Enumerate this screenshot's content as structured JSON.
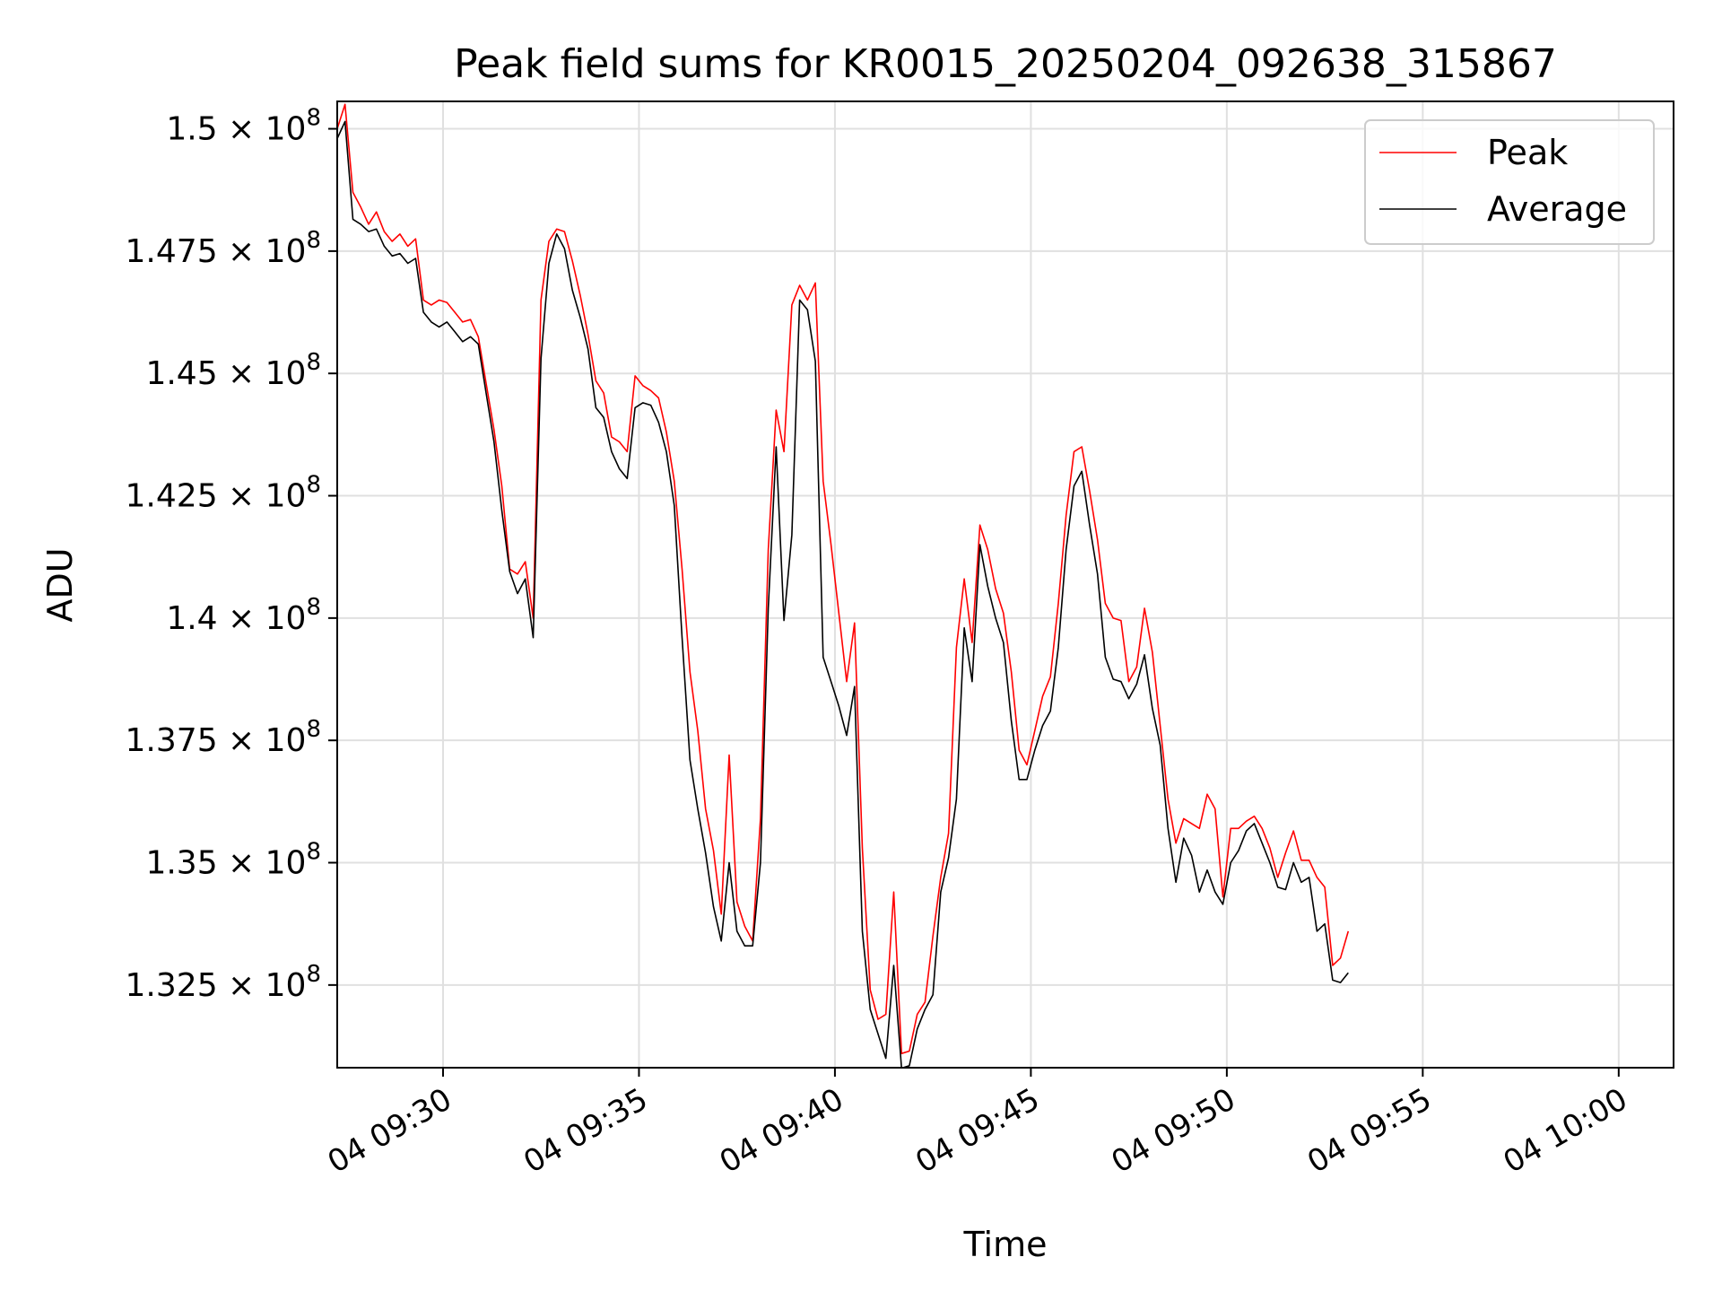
{
  "chart_data": {
    "type": "line",
    "title": "Peak field sums for KR0015_20250204_092638_315867",
    "xlabel": "Time",
    "ylabel": "ADU",
    "x_unit": "minutes",
    "xlim": [
      "09:27:18",
      "10:01:24"
    ],
    "ylim": [
      130810000,
      150560000
    ],
    "grid": true,
    "legend_position": "top-right",
    "x_ticks": [
      {
        "value": "09:30:00",
        "label": "04 09:30"
      },
      {
        "value": "09:35:00",
        "label": "04 09:35"
      },
      {
        "value": "09:40:00",
        "label": "04 09:40"
      },
      {
        "value": "09:45:00",
        "label": "04 09:45"
      },
      {
        "value": "09:50:00",
        "label": "04 09:50"
      },
      {
        "value": "09:55:00",
        "label": "04 09:55"
      },
      {
        "value": "10:00:00",
        "label": "04 10:00"
      }
    ],
    "y_ticks": [
      {
        "value": 150000000,
        "mantissa": "1.5"
      },
      {
        "value": 147500000,
        "mantissa": "1.475"
      },
      {
        "value": 145000000,
        "mantissa": "1.45"
      },
      {
        "value": 142500000,
        "mantissa": "1.425"
      },
      {
        "value": 140000000,
        "mantissa": "1.4"
      },
      {
        "value": 137500000,
        "mantissa": "1.375"
      },
      {
        "value": 135000000,
        "mantissa": "1.35"
      },
      {
        "value": 132500000,
        "mantissa": "1.325"
      }
    ],
    "y_tick_suffix": " × 10",
    "y_tick_exponent": "8",
    "series": [
      {
        "name": "Peak",
        "color": "#ff0000",
        "points": [
          [
            "09:27:18",
            150.0
          ],
          [
            "09:27:30",
            150.5
          ],
          [
            "09:27:42",
            148.7
          ],
          [
            "09:27:54",
            148.4
          ],
          [
            "09:28:06",
            148.05
          ],
          [
            "09:28:18",
            148.3
          ],
          [
            "09:28:30",
            147.9
          ],
          [
            "09:28:42",
            147.7
          ],
          [
            "09:28:54",
            147.85
          ],
          [
            "09:29:06",
            147.6
          ],
          [
            "09:29:18",
            147.75
          ],
          [
            "09:29:30",
            146.5
          ],
          [
            "09:29:42",
            146.4
          ],
          [
            "09:29:54",
            146.5
          ],
          [
            "09:30:06",
            146.45
          ],
          [
            "09:30:18",
            146.25
          ],
          [
            "09:30:30",
            146.05
          ],
          [
            "09:30:42",
            146.1
          ],
          [
            "09:30:54",
            145.75
          ],
          [
            "09:31:06",
            144.8
          ],
          [
            "09:31:18",
            143.85
          ],
          [
            "09:31:30",
            142.7
          ],
          [
            "09:31:42",
            141.0
          ],
          [
            "09:31:54",
            140.9
          ],
          [
            "09:32:06",
            141.15
          ],
          [
            "09:32:18",
            140.0
          ],
          [
            "09:32:30",
            146.5
          ],
          [
            "09:32:42",
            147.7
          ],
          [
            "09:32:54",
            147.95
          ],
          [
            "09:33:06",
            147.9
          ],
          [
            "09:33:18",
            147.3
          ],
          [
            "09:33:30",
            146.6
          ],
          [
            "09:33:42",
            145.8
          ],
          [
            "09:33:54",
            144.85
          ],
          [
            "09:34:06",
            144.6
          ],
          [
            "09:34:18",
            143.7
          ],
          [
            "09:34:30",
            143.6
          ],
          [
            "09:34:42",
            143.4
          ],
          [
            "09:34:54",
            144.95
          ],
          [
            "09:35:06",
            144.75
          ],
          [
            "09:35:18",
            144.65
          ],
          [
            "09:35:30",
            144.5
          ],
          [
            "09:35:42",
            143.8
          ],
          [
            "09:35:54",
            142.8
          ],
          [
            "09:36:06",
            141.0
          ],
          [
            "09:36:18",
            138.9
          ],
          [
            "09:36:30",
            137.7
          ],
          [
            "09:36:42",
            136.1
          ],
          [
            "09:36:54",
            135.25
          ],
          [
            "09:37:06",
            133.95
          ],
          [
            "09:37:18",
            137.2
          ],
          [
            "09:37:30",
            134.2
          ],
          [
            "09:37:42",
            133.7
          ],
          [
            "09:37:54",
            133.4
          ],
          [
            "09:38:06",
            135.9
          ],
          [
            "09:38:18",
            141.4
          ],
          [
            "09:38:30",
            144.25
          ],
          [
            "09:38:42",
            143.4
          ],
          [
            "09:38:54",
            146.4
          ],
          [
            "09:39:06",
            146.8
          ],
          [
            "09:39:18",
            146.5
          ],
          [
            "09:39:30",
            146.85
          ],
          [
            "09:39:42",
            142.8
          ],
          [
            "09:39:54",
            141.5
          ],
          [
            "09:40:06",
            140.1
          ],
          [
            "09:40:18",
            138.7
          ],
          [
            "09:40:30",
            139.9
          ],
          [
            "09:40:42",
            135.3
          ],
          [
            "09:40:54",
            132.4
          ],
          [
            "09:41:06",
            131.8
          ],
          [
            "09:41:18",
            131.9
          ],
          [
            "09:41:30",
            134.4
          ],
          [
            "09:41:42",
            131.1
          ],
          [
            "09:41:54",
            131.15
          ],
          [
            "09:42:06",
            131.9
          ],
          [
            "09:42:18",
            132.15
          ],
          [
            "09:42:30",
            133.5
          ],
          [
            "09:42:42",
            134.7
          ],
          [
            "09:42:54",
            135.6
          ],
          [
            "09:43:06",
            139.4
          ],
          [
            "09:43:18",
            140.8
          ],
          [
            "09:43:30",
            139.5
          ],
          [
            "09:43:42",
            141.9
          ],
          [
            "09:43:54",
            141.4
          ],
          [
            "09:44:06",
            140.6
          ],
          [
            "09:44:18",
            140.1
          ],
          [
            "09:44:30",
            138.9
          ],
          [
            "09:44:42",
            137.3
          ],
          [
            "09:44:54",
            137.0
          ],
          [
            "09:45:06",
            137.7
          ],
          [
            "09:45:18",
            138.4
          ],
          [
            "09:45:30",
            138.8
          ],
          [
            "09:45:42",
            140.3
          ],
          [
            "09:45:54",
            142.1
          ],
          [
            "09:46:06",
            143.4
          ],
          [
            "09:46:18",
            143.5
          ],
          [
            "09:46:30",
            142.6
          ],
          [
            "09:46:42",
            141.6
          ],
          [
            "09:46:54",
            140.3
          ],
          [
            "09:47:06",
            140.0
          ],
          [
            "09:47:18",
            139.95
          ],
          [
            "09:47:30",
            138.7
          ],
          [
            "09:47:42",
            139.0
          ],
          [
            "09:47:54",
            140.2
          ],
          [
            "09:48:06",
            139.3
          ],
          [
            "09:48:18",
            137.8
          ],
          [
            "09:48:30",
            136.3
          ],
          [
            "09:48:42",
            135.4
          ],
          [
            "09:48:54",
            135.9
          ],
          [
            "09:49:06",
            135.8
          ],
          [
            "09:49:18",
            135.7
          ],
          [
            "09:49:30",
            136.4
          ],
          [
            "09:49:42",
            136.1
          ],
          [
            "09:49:54",
            134.3
          ],
          [
            "09:50:06",
            135.7
          ],
          [
            "09:50:18",
            135.7
          ],
          [
            "09:50:30",
            135.85
          ],
          [
            "09:50:42",
            135.95
          ],
          [
            "09:50:54",
            135.7
          ],
          [
            "09:51:06",
            135.3
          ],
          [
            "09:51:18",
            134.7
          ],
          [
            "09:51:30",
            135.2
          ],
          [
            "09:51:42",
            135.65
          ],
          [
            "09:51:54",
            135.05
          ],
          [
            "09:52:06",
            135.05
          ],
          [
            "09:52:18",
            134.7
          ],
          [
            "09:52:30",
            134.5
          ],
          [
            "09:52:42",
            132.9
          ],
          [
            "09:52:54",
            133.05
          ],
          [
            "09:53:06",
            133.6
          ]
        ]
      },
      {
        "name": "Average",
        "color": "#000000",
        "points": [
          [
            "09:27:18",
            149.8
          ],
          [
            "09:27:30",
            150.15
          ],
          [
            "09:27:42",
            148.15
          ],
          [
            "09:27:54",
            148.05
          ],
          [
            "09:28:06",
            147.9
          ],
          [
            "09:28:18",
            147.95
          ],
          [
            "09:28:30",
            147.6
          ],
          [
            "09:28:42",
            147.4
          ],
          [
            "09:28:54",
            147.45
          ],
          [
            "09:29:06",
            147.25
          ],
          [
            "09:29:18",
            147.35
          ],
          [
            "09:29:30",
            146.25
          ],
          [
            "09:29:42",
            146.05
          ],
          [
            "09:29:54",
            145.95
          ],
          [
            "09:30:06",
            146.05
          ],
          [
            "09:30:18",
            145.85
          ],
          [
            "09:30:30",
            145.65
          ],
          [
            "09:30:42",
            145.75
          ],
          [
            "09:30:54",
            145.6
          ],
          [
            "09:31:06",
            144.6
          ],
          [
            "09:31:18",
            143.6
          ],
          [
            "09:31:30",
            142.2
          ],
          [
            "09:31:42",
            140.95
          ],
          [
            "09:31:54",
            140.5
          ],
          [
            "09:32:06",
            140.8
          ],
          [
            "09:32:18",
            139.6
          ],
          [
            "09:32:30",
            145.3
          ],
          [
            "09:32:42",
            147.25
          ],
          [
            "09:32:54",
            147.85
          ],
          [
            "09:33:06",
            147.55
          ],
          [
            "09:33:18",
            146.7
          ],
          [
            "09:33:30",
            146.15
          ],
          [
            "09:33:42",
            145.5
          ],
          [
            "09:33:54",
            144.3
          ],
          [
            "09:34:06",
            144.1
          ],
          [
            "09:34:18",
            143.4
          ],
          [
            "09:34:30",
            143.05
          ],
          [
            "09:34:42",
            142.85
          ],
          [
            "09:34:54",
            144.3
          ],
          [
            "09:35:06",
            144.4
          ],
          [
            "09:35:18",
            144.35
          ],
          [
            "09:35:30",
            144.0
          ],
          [
            "09:35:42",
            143.4
          ],
          [
            "09:35:54",
            142.3
          ],
          [
            "09:36:06",
            139.6
          ],
          [
            "09:36:18",
            137.1
          ],
          [
            "09:36:30",
            136.1
          ],
          [
            "09:36:42",
            135.2
          ],
          [
            "09:36:54",
            134.1
          ],
          [
            "09:37:06",
            133.4
          ],
          [
            "09:37:18",
            135.0
          ],
          [
            "09:37:30",
            133.6
          ],
          [
            "09:37:42",
            133.3
          ],
          [
            "09:37:54",
            133.3
          ],
          [
            "09:38:06",
            135.0
          ],
          [
            "09:38:18",
            140.2
          ],
          [
            "09:38:30",
            143.5
          ],
          [
            "09:38:42",
            139.95
          ],
          [
            "09:38:54",
            141.7
          ],
          [
            "09:39:06",
            146.5
          ],
          [
            "09:39:18",
            146.3
          ],
          [
            "09:39:30",
            145.25
          ],
          [
            "09:39:42",
            139.2
          ],
          [
            "09:39:54",
            138.7
          ],
          [
            "09:40:06",
            138.2
          ],
          [
            "09:40:18",
            137.6
          ],
          [
            "09:40:30",
            138.6
          ],
          [
            "09:40:42",
            133.6
          ],
          [
            "09:40:54",
            132.0
          ],
          [
            "09:41:06",
            131.5
          ],
          [
            "09:41:18",
            131.0
          ],
          [
            "09:41:30",
            132.9
          ],
          [
            "09:41:42",
            130.8
          ],
          [
            "09:41:54",
            130.85
          ],
          [
            "09:42:06",
            131.6
          ],
          [
            "09:42:18",
            132.0
          ],
          [
            "09:42:30",
            132.3
          ],
          [
            "09:42:42",
            134.4
          ],
          [
            "09:42:54",
            135.1
          ],
          [
            "09:43:06",
            136.3
          ],
          [
            "09:43:18",
            139.8
          ],
          [
            "09:43:30",
            138.7
          ],
          [
            "09:43:42",
            141.5
          ],
          [
            "09:43:54",
            140.65
          ],
          [
            "09:44:06",
            140.0
          ],
          [
            "09:44:18",
            139.5
          ],
          [
            "09:44:30",
            137.9
          ],
          [
            "09:44:42",
            136.7
          ],
          [
            "09:44:54",
            136.7
          ],
          [
            "09:45:06",
            137.3
          ],
          [
            "09:45:18",
            137.8
          ],
          [
            "09:45:30",
            138.1
          ],
          [
            "09:45:42",
            139.4
          ],
          [
            "09:45:54",
            141.4
          ],
          [
            "09:46:06",
            142.7
          ],
          [
            "09:46:18",
            143.0
          ],
          [
            "09:46:30",
            141.9
          ],
          [
            "09:46:42",
            140.9
          ],
          [
            "09:46:54",
            139.2
          ],
          [
            "09:47:06",
            138.75
          ],
          [
            "09:47:18",
            138.7
          ],
          [
            "09:47:30",
            138.35
          ],
          [
            "09:47:42",
            138.65
          ],
          [
            "09:47:54",
            139.25
          ],
          [
            "09:48:06",
            138.15
          ],
          [
            "09:48:18",
            137.4
          ],
          [
            "09:48:30",
            135.7
          ],
          [
            "09:48:42",
            134.6
          ],
          [
            "09:48:54",
            135.5
          ],
          [
            "09:49:06",
            135.15
          ],
          [
            "09:49:18",
            134.4
          ],
          [
            "09:49:30",
            134.85
          ],
          [
            "09:49:42",
            134.4
          ],
          [
            "09:49:54",
            134.15
          ],
          [
            "09:50:06",
            135.0
          ],
          [
            "09:50:18",
            135.25
          ],
          [
            "09:50:30",
            135.65
          ],
          [
            "09:50:42",
            135.8
          ],
          [
            "09:50:54",
            135.4
          ],
          [
            "09:51:06",
            135.0
          ],
          [
            "09:51:18",
            134.5
          ],
          [
            "09:51:30",
            134.45
          ],
          [
            "09:51:42",
            135.0
          ],
          [
            "09:51:54",
            134.6
          ],
          [
            "09:52:06",
            134.7
          ],
          [
            "09:52:18",
            133.6
          ],
          [
            "09:52:30",
            133.75
          ],
          [
            "09:52:42",
            132.6
          ],
          [
            "09:52:54",
            132.55
          ],
          [
            "09:53:06",
            132.75
          ]
        ]
      }
    ]
  }
}
